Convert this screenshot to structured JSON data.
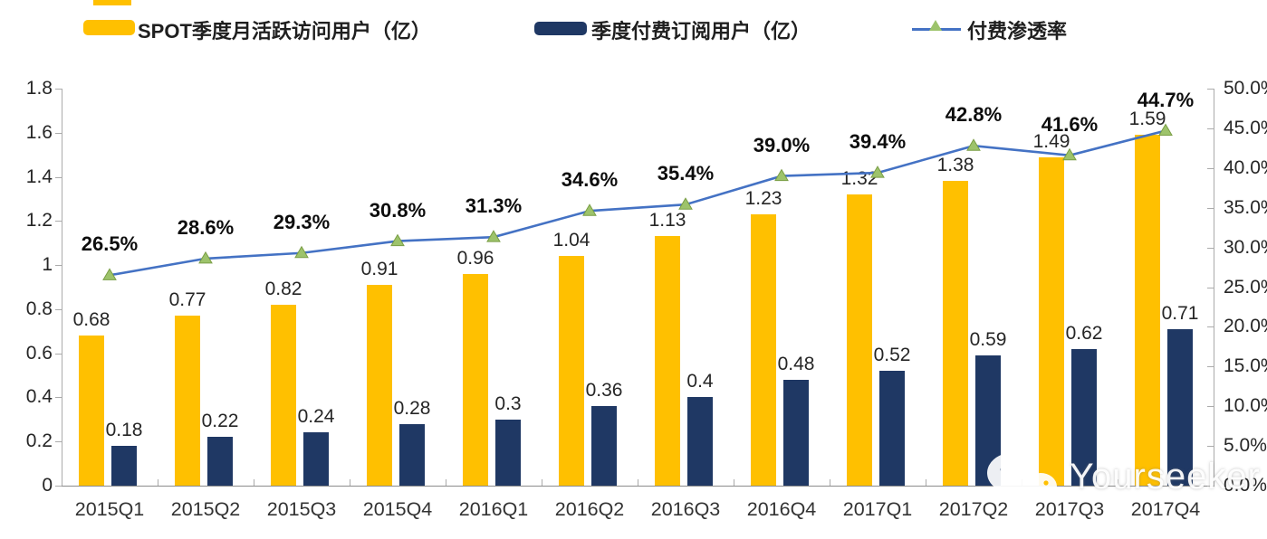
{
  "legend": {
    "items": [
      {
        "label": "SPOT季度月活跃访问用户（亿）",
        "swatch": "bar",
        "color": "#FFC000"
      },
      {
        "label": "季度付费订阅用户（亿）",
        "swatch": "bar",
        "color": "#1F3864"
      },
      {
        "label": "付费渗透率",
        "swatch": "line-triangle-marker",
        "color": "#4472C4",
        "marker_color": "#9DC36B"
      }
    ]
  },
  "chart_data": {
    "type": "bar",
    "subtype": "combo bar + line, dual axis",
    "title": "",
    "xlabel": "",
    "ylabel": "",
    "grid": "off",
    "legend_position": "top",
    "categories": [
      "2015Q1",
      "2015Q2",
      "2015Q3",
      "2015Q4",
      "2016Q1",
      "2016Q2",
      "2016Q3",
      "2016Q4",
      "2017Q1",
      "2017Q2",
      "2017Q3",
      "2017Q4"
    ],
    "series": [
      {
        "name": "SPOT季度月活跃访问用户（亿）",
        "type": "bar",
        "axis": "left",
        "color": "#FFC000",
        "values": [
          0.68,
          0.77,
          0.82,
          0.91,
          0.96,
          1.04,
          1.13,
          1.23,
          1.32,
          1.38,
          1.49,
          1.59
        ],
        "labels": [
          "0.68",
          "0.77",
          "0.82",
          "0.91",
          "0.96",
          "1.04",
          "1.13",
          "1.23",
          "1.32",
          "1.38",
          "1.49",
          "1.59"
        ]
      },
      {
        "name": "季度付费订阅用户（亿）",
        "type": "bar",
        "axis": "left",
        "color": "#1F3864",
        "values": [
          0.18,
          0.22,
          0.24,
          0.28,
          0.3,
          0.36,
          0.4,
          0.48,
          0.52,
          0.59,
          0.62,
          0.71
        ],
        "labels": [
          "0.18",
          "0.22",
          "0.24",
          "0.28",
          "0.3",
          "0.36",
          "0.4",
          "0.48",
          "0.52",
          "0.59",
          "0.62",
          "0.71"
        ]
      },
      {
        "name": "付费渗透率",
        "type": "line",
        "axis": "right",
        "color": "#4472C4",
        "marker": "triangle",
        "marker_color": "#9DC36B",
        "marker_edge": "#7A9E45",
        "values": [
          26.5,
          28.6,
          29.3,
          30.8,
          31.3,
          34.6,
          35.4,
          39.0,
          39.4,
          42.8,
          41.6,
          44.7
        ],
        "labels": [
          "26.5%",
          "28.6%",
          "29.3%",
          "30.8%",
          "31.3%",
          "34.6%",
          "35.4%",
          "39.0%",
          "39.4%",
          "42.8%",
          "41.6%",
          "44.7%"
        ]
      }
    ],
    "left_axis": {
      "min": 0,
      "max": 1.8,
      "step": 0.2,
      "tick_labels": [
        "1.8",
        "1.6",
        "1.4",
        "1.2",
        "1",
        "0.8",
        "0.6",
        "0.4",
        "0.2",
        "0"
      ]
    },
    "right_axis": {
      "min": 0,
      "max": 50,
      "step": 5,
      "tick_labels": [
        "50.0%",
        "45.0%",
        "40.0%",
        "35.0%",
        "30.0%",
        "25.0%",
        "20.0%",
        "15.0%",
        "10.0%",
        "5.0%",
        "0.0%"
      ]
    }
  },
  "colors": {
    "axis_line": "#ABABAB",
    "bottom_axis_line": "#8C8C8C",
    "text": "#262626"
  },
  "watermark": {
    "text": "Yourseeker",
    "icon": "wechat-icon"
  }
}
